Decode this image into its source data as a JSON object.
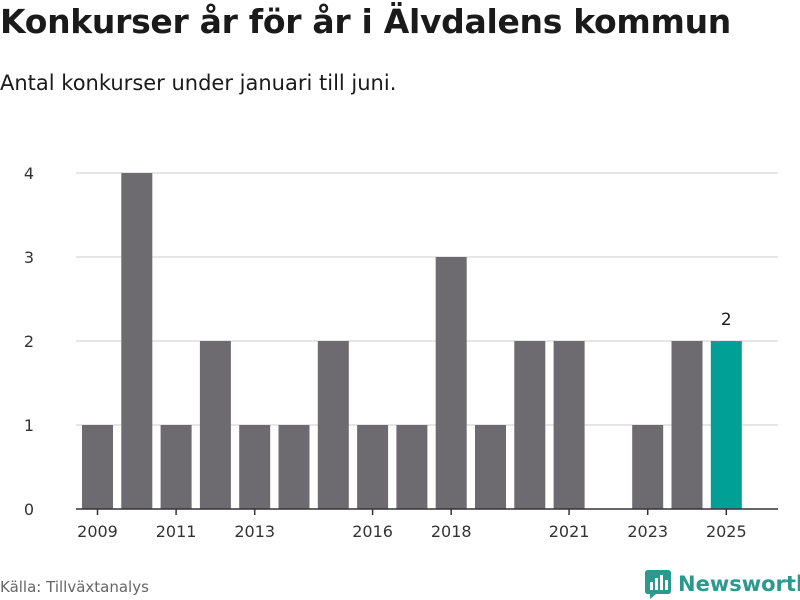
{
  "header": {
    "title": "Konkurser år för år i Älvdalens kommun",
    "subtitle": "Antal konkurser under januari till juni."
  },
  "footer": {
    "source": "Källa: Tillväxtanalys",
    "brand": "Newsworthy"
  },
  "colors": {
    "bar": "#6d6b70",
    "highlight": "#00a096",
    "brand": "#2a9a8e"
  },
  "chart_data": {
    "type": "bar",
    "title": "Konkurser år för år i Älvdalens kommun",
    "subtitle": "Antal konkurser under januari till juni.",
    "xlabel": "",
    "ylabel": "",
    "x": [
      2009,
      2010,
      2011,
      2012,
      2013,
      2014,
      2015,
      2016,
      2017,
      2018,
      2019,
      2020,
      2021,
      2022,
      2023,
      2024,
      2025
    ],
    "values": [
      1,
      4,
      1,
      2,
      1,
      1,
      2,
      1,
      1,
      3,
      1,
      2,
      2,
      0,
      1,
      2,
      2
    ],
    "xticks": [
      2009,
      2011,
      2013,
      2016,
      2018,
      2021,
      2023,
      2025
    ],
    "yticks": [
      0,
      1,
      2,
      3,
      4
    ],
    "ylim": [
      0,
      4
    ],
    "grid": true,
    "highlight": {
      "x": 2025,
      "label": "2"
    }
  }
}
